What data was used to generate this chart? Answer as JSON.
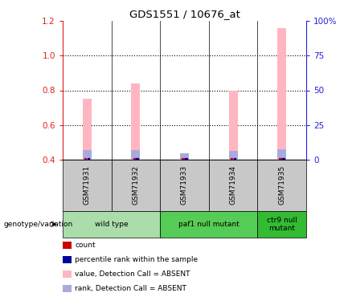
{
  "title": "GDS1551 / 10676_at",
  "samples": [
    "GSM71931",
    "GSM71932",
    "GSM71933",
    "GSM71934",
    "GSM71935"
  ],
  "bar_bottom": 0.4,
  "value_bars": [
    0.75,
    0.84,
    0.43,
    0.8,
    1.16
  ],
  "rank_bars": [
    0.455,
    0.455,
    0.435,
    0.45,
    0.46
  ],
  "ylim_left": [
    0.4,
    1.2
  ],
  "ylim_right": [
    0,
    100
  ],
  "yticks_left": [
    0.4,
    0.6,
    0.8,
    1.0,
    1.2
  ],
  "yticks_right": [
    0,
    25,
    50,
    75,
    100
  ],
  "ytick_labels_right": [
    "0",
    "25",
    "50",
    "75",
    "100%"
  ],
  "color_value_bar": "#FFB6C1",
  "color_rank_bar": "#AAAADD",
  "color_count_sq": "#CC0000",
  "color_percentile_sq": "#000099",
  "groups": [
    {
      "label": "wild type",
      "span": [
        0,
        1
      ],
      "color": "#AADDAA"
    },
    {
      "label": "paf1 null mutant",
      "span": [
        2,
        3
      ],
      "color": "#55CC55"
    },
    {
      "label": "ctr9 null\nmutant",
      "span": [
        4,
        4
      ],
      "color": "#33BB33"
    }
  ],
  "legend_items": [
    {
      "color": "#CC0000",
      "label": "count"
    },
    {
      "color": "#000099",
      "label": "percentile rank within the sample"
    },
    {
      "color": "#FFB6C1",
      "label": "value, Detection Call = ABSENT"
    },
    {
      "color": "#AAAADD",
      "label": "rank, Detection Call = ABSENT"
    }
  ],
  "left_axis_color": "#DD2222",
  "right_axis_color": "#2222DD",
  "background_label": "#C8C8C8",
  "genotype_label": "genotype/variation"
}
